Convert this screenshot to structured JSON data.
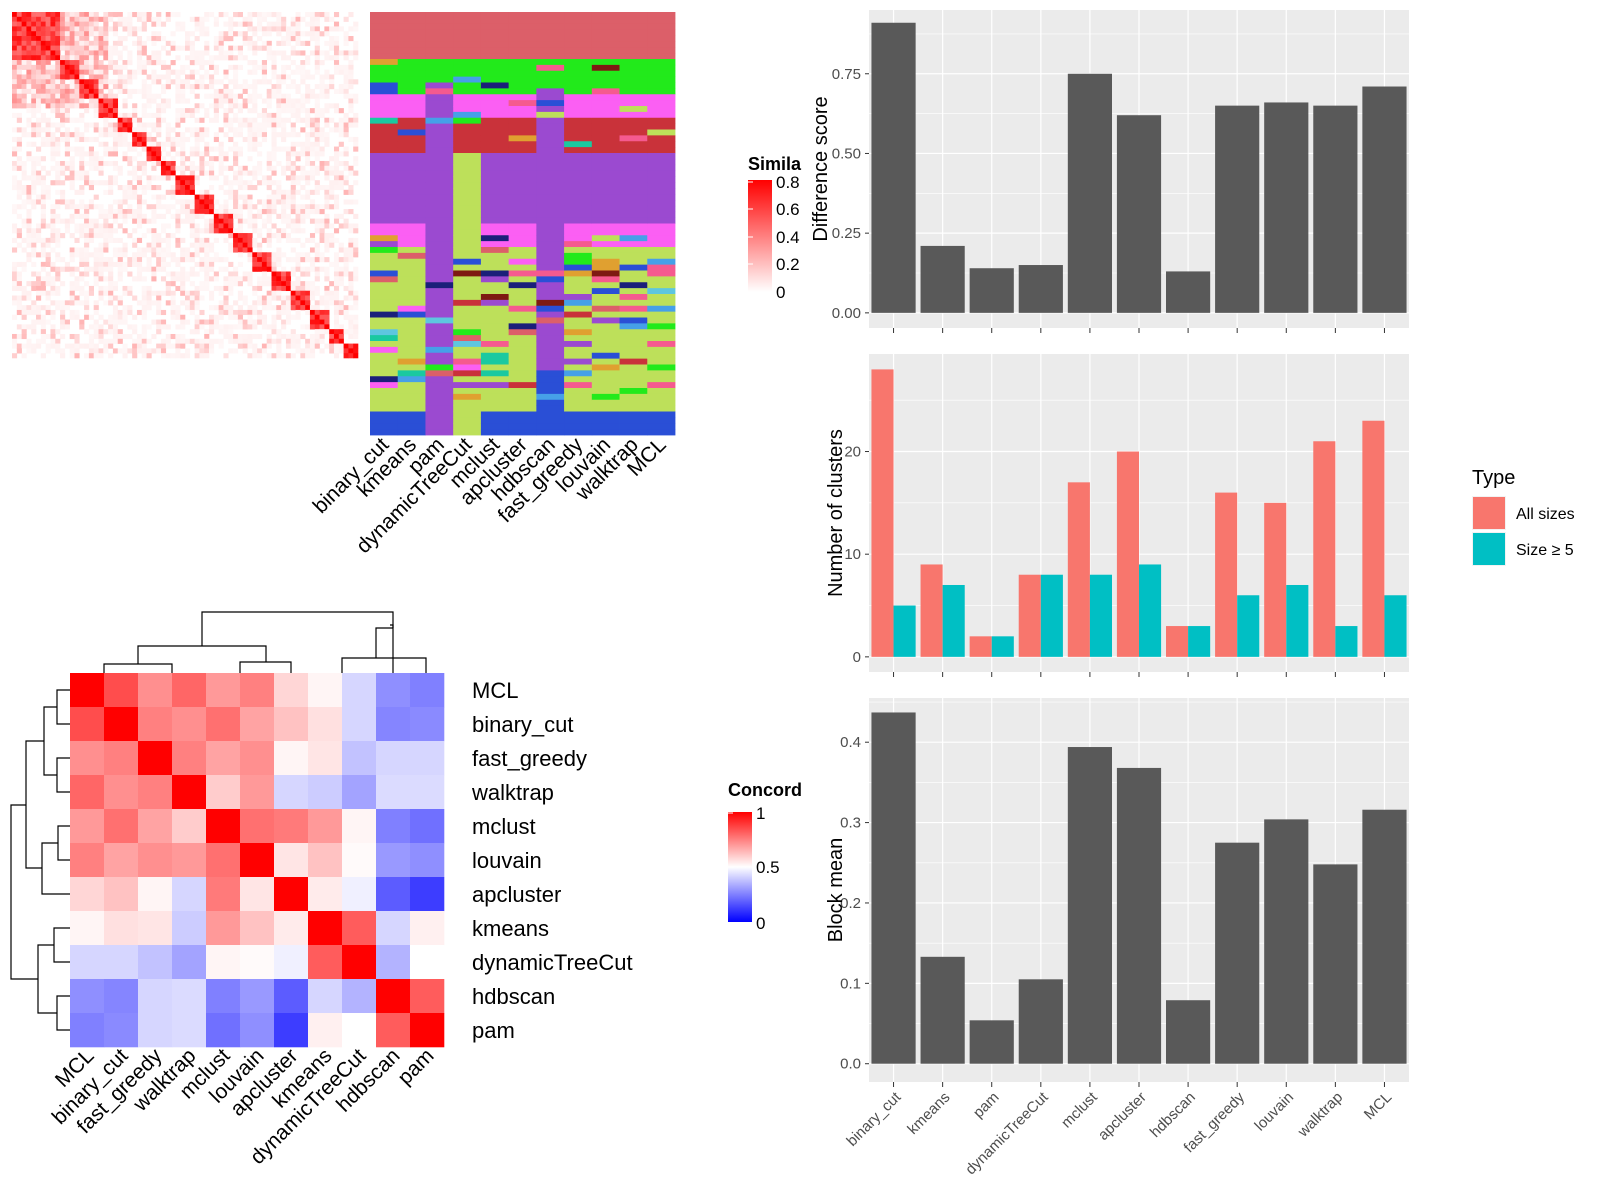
{
  "methods_heatmap": [
    "binary_cut",
    "kmeans",
    "pam",
    "dynamicTreeCut",
    "mclust",
    "apcluster",
    "hdbscan",
    "fast_greedy",
    "louvain",
    "walktrap",
    "MCL"
  ],
  "similarity_legend": {
    "title": "Simila",
    "ticks": [
      "0.8",
      "0.6",
      "0.4",
      "0.2",
      "0"
    ],
    "colors": [
      "#ffffff",
      "#ff0000"
    ]
  },
  "concordance": {
    "legend_title": "Concord",
    "legend_ticks": [
      "1",
      "0.5",
      "0"
    ],
    "colors": [
      "#0000ff",
      "#ffffff",
      "#ff0000"
    ],
    "order": [
      "MCL",
      "binary_cut",
      "fast_greedy",
      "walktrap",
      "mclust",
      "louvain",
      "apcluster",
      "kmeans",
      "dynamicTreeCut",
      "hdbscan",
      "pam"
    ],
    "matrix": [
      [
        1.0,
        0.85,
        0.72,
        0.8,
        0.7,
        0.75,
        0.58,
        0.52,
        0.42,
        0.28,
        0.25
      ],
      [
        0.85,
        1.0,
        0.75,
        0.72,
        0.78,
        0.68,
        0.62,
        0.56,
        0.42,
        0.26,
        0.27
      ],
      [
        0.72,
        0.75,
        1.0,
        0.75,
        0.68,
        0.72,
        0.52,
        0.55,
        0.38,
        0.42,
        0.42
      ],
      [
        0.8,
        0.72,
        0.75,
        1.0,
        0.6,
        0.7,
        0.42,
        0.4,
        0.32,
        0.43,
        0.43
      ],
      [
        0.7,
        0.78,
        0.68,
        0.6,
        1.0,
        0.78,
        0.76,
        0.7,
        0.52,
        0.25,
        0.22
      ],
      [
        0.75,
        0.68,
        0.72,
        0.7,
        0.78,
        1.0,
        0.55,
        0.62,
        0.51,
        0.3,
        0.28
      ],
      [
        0.58,
        0.62,
        0.52,
        0.42,
        0.76,
        0.55,
        1.0,
        0.54,
        0.47,
        0.18,
        0.12
      ],
      [
        0.52,
        0.56,
        0.55,
        0.4,
        0.7,
        0.62,
        0.54,
        1.0,
        0.82,
        0.42,
        0.53
      ],
      [
        0.42,
        0.42,
        0.38,
        0.32,
        0.52,
        0.51,
        0.47,
        0.82,
        1.0,
        0.35,
        0.5
      ],
      [
        0.28,
        0.26,
        0.42,
        0.43,
        0.25,
        0.3,
        0.18,
        0.42,
        0.35,
        1.0,
        0.82
      ],
      [
        0.25,
        0.27,
        0.42,
        0.43,
        0.22,
        0.28,
        0.12,
        0.53,
        0.5,
        0.82,
        1.0
      ]
    ]
  },
  "chart_data": [
    {
      "type": "bar",
      "categories": [
        "binary_cut",
        "kmeans",
        "pam",
        "dynamicTreeCut",
        "mclust",
        "apcluster",
        "hdbscan",
        "fast_greedy",
        "louvain",
        "walktrap",
        "MCL"
      ],
      "values": [
        0.91,
        0.21,
        0.14,
        0.15,
        0.75,
        0.62,
        0.13,
        0.65,
        0.66,
        0.65,
        0.71
      ],
      "ylabel": "Difference score",
      "yticks": [
        "0.00",
        "0.25",
        "0.50",
        "0.75"
      ],
      "ylim": [
        0,
        0.95
      ],
      "bar_color": "#595959"
    },
    {
      "type": "bar",
      "categories": [
        "binary_cut",
        "kmeans",
        "pam",
        "dynamicTreeCut",
        "mclust",
        "apcluster",
        "hdbscan",
        "fast_greedy",
        "louvain",
        "walktrap",
        "MCL"
      ],
      "series": [
        {
          "name": "All sizes",
          "values": [
            28,
            9,
            2,
            8,
            17,
            20,
            3,
            16,
            15,
            21,
            23
          ],
          "color": "#f8766d"
        },
        {
          "name": "Size ≥ 5",
          "values": [
            5,
            7,
            2,
            8,
            8,
            9,
            3,
            6,
            7,
            3,
            6
          ],
          "color": "#00bfc4"
        }
      ],
      "ylabel": "Number of clusters",
      "yticks": [
        "0",
        "10",
        "20"
      ],
      "ylim": [
        0,
        29.5
      ],
      "legend_title": "Type",
      "legend_position": "right"
    },
    {
      "type": "bar",
      "categories": [
        "binary_cut",
        "kmeans",
        "pam",
        "dynamicTreeCut",
        "mclust",
        "apcluster",
        "hdbscan",
        "fast_greedy",
        "louvain",
        "walktrap",
        "MCL"
      ],
      "values": [
        0.437,
        0.133,
        0.054,
        0.105,
        0.394,
        0.368,
        0.079,
        0.275,
        0.304,
        0.248,
        0.316
      ],
      "ylabel": "Block mean",
      "yticks": [
        "0.0",
        "0.1",
        "0.2",
        "0.3",
        "0.4"
      ],
      "ylim": [
        0,
        0.455
      ],
      "bar_color": "#595959"
    }
  ]
}
